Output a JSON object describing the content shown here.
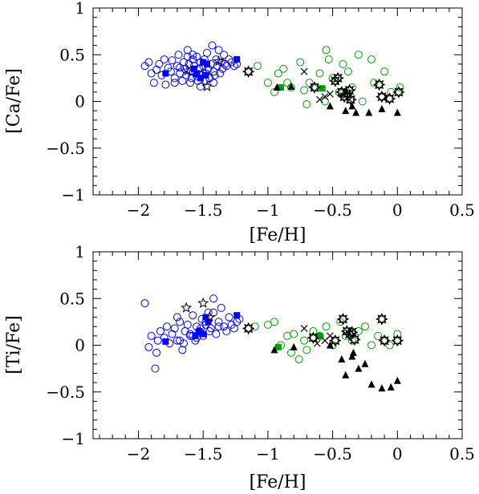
{
  "colors": {
    "halo": "#0000ff",
    "thick_disc": "#00a000",
    "other": "#000000"
  },
  "chart_data": [
    {
      "type": "scatter",
      "xlabel": "[Fe/H]",
      "ylabel": "[Ca/Fe]",
      "xlim": [
        -2.35,
        0.5
      ],
      "ylim": [
        -1,
        1
      ],
      "xticks_labeled": [
        "-2",
        "-1.5",
        "-1",
        "-0.5",
        "0",
        "0.5"
      ],
      "yticks_labeled": [
        "1",
        "0.5",
        "0",
        "-0.5",
        "-1"
      ],
      "series": [
        {
          "marker": "open-circle",
          "color": "#0000ff",
          "x": [
            -1.95,
            -1.92,
            -1.9,
            -1.88,
            -1.86,
            -1.84,
            -1.82,
            -1.8,
            -1.79,
            -1.77,
            -1.75,
            -1.74,
            -1.72,
            -1.7,
            -1.69,
            -1.68,
            -1.66,
            -1.65,
            -1.64,
            -1.63,
            -1.62,
            -1.61,
            -1.6,
            -1.59,
            -1.58,
            -1.57,
            -1.56,
            -1.55,
            -1.54,
            -1.53,
            -1.52,
            -1.51,
            -1.5,
            -1.49,
            -1.48,
            -1.47,
            -1.46,
            -1.45,
            -1.44,
            -1.43,
            -1.42,
            -1.41,
            -1.4,
            -1.39,
            -1.38,
            -1.37,
            -1.36,
            -1.35,
            -1.34,
            -1.33,
            -1.32,
            -1.3,
            -1.28,
            -1.26,
            -1.24,
            -1.6,
            -1.55,
            -1.5,
            -1.45,
            -1.62,
            -1.68,
            -1.72,
            -1.52,
            -1.42,
            -1.48,
            -1.58
          ],
          "y": [
            0.38,
            0.42,
            0.3,
            0.2,
            0.34,
            0.4,
            0.28,
            0.45,
            0.18,
            0.36,
            0.32,
            0.44,
            0.25,
            0.38,
            0.5,
            0.3,
            0.22,
            0.42,
            0.35,
            0.28,
            0.55,
            0.4,
            0.32,
            0.25,
            0.45,
            0.38,
            0.3,
            0.48,
            0.22,
            0.35,
            0.42,
            0.28,
            0.38,
            0.45,
            0.3,
            0.52,
            0.35,
            0.25,
            0.4,
            0.6,
            0.32,
            0.28,
            0.45,
            0.38,
            0.55,
            0.3,
            0.42,
            0.35,
            0.5,
            0.4,
            0.38,
            0.45,
            0.42,
            0.38,
            0.4,
            0.2,
            0.27,
            0.3,
            0.25,
            0.48,
            0.36,
            0.2,
            0.16,
            0.2,
            0.22,
            0.5
          ]
        },
        {
          "marker": "filled-square",
          "color": "#0000ff",
          "x": [
            -1.79,
            -1.57,
            -1.55,
            -1.52,
            -1.5,
            -1.48,
            -1.47,
            -1.24
          ],
          "y": [
            0.3,
            0.35,
            0.3,
            0.25,
            0.42,
            0.28,
            0.4,
            0.45
          ]
        },
        {
          "marker": "open-star",
          "color": "#000000",
          "x": [
            -1.62,
            -1.47,
            -1.38
          ],
          "y": [
            0.33,
            0.16,
            0.43
          ]
        },
        {
          "marker": "open-circle",
          "color": "#00a000",
          "x": [
            -1.08,
            -1.0,
            -0.95,
            -0.92,
            -0.88,
            -0.85,
            -0.82,
            -0.75,
            -0.72,
            -0.68,
            -0.63,
            -0.6,
            -0.55,
            -0.53,
            -0.5,
            -0.45,
            -0.42,
            -0.38,
            -0.35,
            -0.3,
            -0.27,
            -0.2,
            -0.18,
            -0.1,
            -0.05,
            0.02,
            -0.56,
            -0.7
          ],
          "y": [
            0.38,
            0.2,
            0.1,
            0.3,
            0.35,
            0.2,
            0.15,
            0.42,
            0.12,
            0.2,
            0.15,
            0.3,
            0.55,
            0.45,
            0.25,
            0.1,
            0.4,
            0.32,
            0.15,
            0.5,
            0.0,
            0.45,
            0.2,
            0.32,
            0.1,
            0.15,
            0.0,
            -0.03
          ]
        },
        {
          "marker": "filled-square",
          "color": "#00a000",
          "x": [
            -0.9,
            -0.58
          ],
          "y": [
            0.15,
            0.14
          ]
        },
        {
          "marker": "filled-triangle",
          "color": "#000000",
          "x": [
            -0.93,
            -0.82,
            -0.52,
            -0.4,
            -0.35,
            -0.32,
            -0.22,
            -0.12,
            0.0
          ],
          "y": [
            0.15,
            0.16,
            -0.05,
            -0.1,
            -0.05,
            -0.12,
            -0.12,
            -0.08,
            -0.12
          ]
        },
        {
          "marker": "open-burst",
          "color": "#000000",
          "x": [
            -1.15,
            -0.64,
            -0.48,
            -0.46,
            -0.43,
            -0.41,
            -0.39,
            -0.37,
            -0.36,
            -0.14,
            -0.12,
            0.01,
            -0.06
          ],
          "y": [
            0.32,
            0.15,
            0.22,
            0.25,
            0.1,
            0.05,
            0.08,
            0.12,
            0.02,
            0.18,
            0.05,
            0.1,
            0.03
          ]
        },
        {
          "marker": "cross",
          "color": "#000000",
          "x": [
            -0.72,
            -0.6,
            -0.56,
            -0.52,
            -0.37
          ],
          "y": [
            0.32,
            0.02,
            0.05,
            0.08,
            0.02
          ]
        }
      ]
    },
    {
      "type": "scatter",
      "xlabel": "[Fe/H]",
      "ylabel": "[Ti/Fe]",
      "xlim": [
        -2.35,
        0.5
      ],
      "ylim": [
        -1,
        1
      ],
      "xticks_labeled": [
        "-2",
        "-1.5",
        "-1",
        "-0.5",
        "0",
        "0.5"
      ],
      "yticks_labeled": [
        "1",
        "0.5",
        "0",
        "-0.5",
        "-1"
      ],
      "series": [
        {
          "marker": "open-circle",
          "color": "#0000ff",
          "x": [
            -1.95,
            -1.92,
            -1.9,
            -1.87,
            -1.85,
            -1.83,
            -1.8,
            -1.78,
            -1.76,
            -1.74,
            -1.72,
            -1.7,
            -1.68,
            -1.66,
            -1.64,
            -1.62,
            -1.6,
            -1.58,
            -1.56,
            -1.55,
            -1.53,
            -1.51,
            -1.5,
            -1.48,
            -1.46,
            -1.44,
            -1.42,
            -1.4,
            -1.38,
            -1.36,
            -1.34,
            -1.32,
            -1.3,
            -1.28,
            -1.26,
            -1.24,
            -1.22,
            -1.86,
            -1.65,
            -1.55,
            -1.45,
            -1.7,
            -1.6,
            -1.52,
            -1.42,
            -1.68,
            -1.58,
            -1.48,
            -1.38
          ],
          "y": [
            0.45,
            -0.02,
            0.1,
            -0.25,
            0.05,
            0.15,
            0.08,
            0.2,
            0.02,
            0.12,
            0.18,
            0.05,
            0.25,
            -0.05,
            0.15,
            0.22,
            0.1,
            0.32,
            0.05,
            0.2,
            0.15,
            0.28,
            0.1,
            0.22,
            0.35,
            0.18,
            0.5,
            0.12,
            0.25,
            0.4,
            0.2,
            0.15,
            0.3,
            0.22,
            0.18,
            0.25,
            0.28,
            -0.08,
            0.02,
            0.08,
            0.15,
            0.3,
            0.12,
            0.18,
            0.35,
            0.05,
            0.1,
            0.25,
            0.2
          ]
        },
        {
          "marker": "filled-square",
          "color": "#0000ff",
          "x": [
            -1.79,
            -1.56,
            -1.53,
            -1.5,
            -1.48,
            -1.46,
            -1.24
          ],
          "y": [
            0.04,
            0.1,
            0.15,
            0.12,
            0.3,
            0.25,
            0.32
          ]
        },
        {
          "marker": "open-star",
          "color": "#000000",
          "x": [
            -1.63,
            -1.5,
            -1.45
          ],
          "y": [
            0.4,
            0.45,
            0.3
          ]
        },
        {
          "marker": "open-circle",
          "color": "#00a000",
          "x": [
            -1.1,
            -1.0,
            -0.95,
            -0.9,
            -0.85,
            -0.8,
            -0.76,
            -0.72,
            -0.65,
            -0.6,
            -0.55,
            -0.5,
            -0.44,
            -0.4,
            -0.35,
            -0.3,
            -0.25,
            -0.2,
            -0.15,
            -0.1,
            -0.06,
            0.0,
            -0.82,
            -0.7
          ],
          "y": [
            0.2,
            0.22,
            0.25,
            0.0,
            0.1,
            0.12,
            -0.15,
            0.05,
            0.15,
            0.1,
            0.2,
            0.0,
            0.25,
            0.1,
            0.05,
            0.15,
            0.2,
            0.0,
            0.1,
            0.05,
            0.0,
            0.12,
            -0.08,
            -0.05
          ]
        },
        {
          "marker": "filled-square",
          "color": "#00a000",
          "x": [
            -0.92,
            -0.6
          ],
          "y": [
            -0.02,
            0.1
          ]
        },
        {
          "marker": "filled-triangle",
          "color": "#000000",
          "x": [
            -0.95,
            -0.8,
            -0.52,
            -0.43,
            -0.4,
            -0.35,
            -0.34,
            -0.3,
            -0.25,
            -0.2,
            -0.12,
            -0.05,
            0.0
          ],
          "y": [
            -0.05,
            -0.02,
            0.0,
            -0.15,
            -0.32,
            -0.12,
            -0.08,
            -0.25,
            -0.2,
            -0.42,
            -0.46,
            -0.45,
            -0.38
          ]
        },
        {
          "marker": "open-burst",
          "color": "#000000",
          "x": [
            -1.15,
            -0.65,
            -0.48,
            -0.42,
            -0.39,
            -0.37,
            -0.35,
            -0.33,
            -0.12,
            -0.1,
            0.0
          ],
          "y": [
            0.18,
            0.08,
            0.05,
            0.28,
            0.15,
            0.12,
            0.14,
            0.06,
            0.28,
            0.05,
            0.05
          ]
        },
        {
          "marker": "cross",
          "color": "#000000",
          "x": [
            -0.72,
            -0.62,
            -0.56,
            -0.52
          ],
          "y": [
            0.18,
            0.02,
            0.05,
            0.1
          ]
        }
      ]
    }
  ]
}
